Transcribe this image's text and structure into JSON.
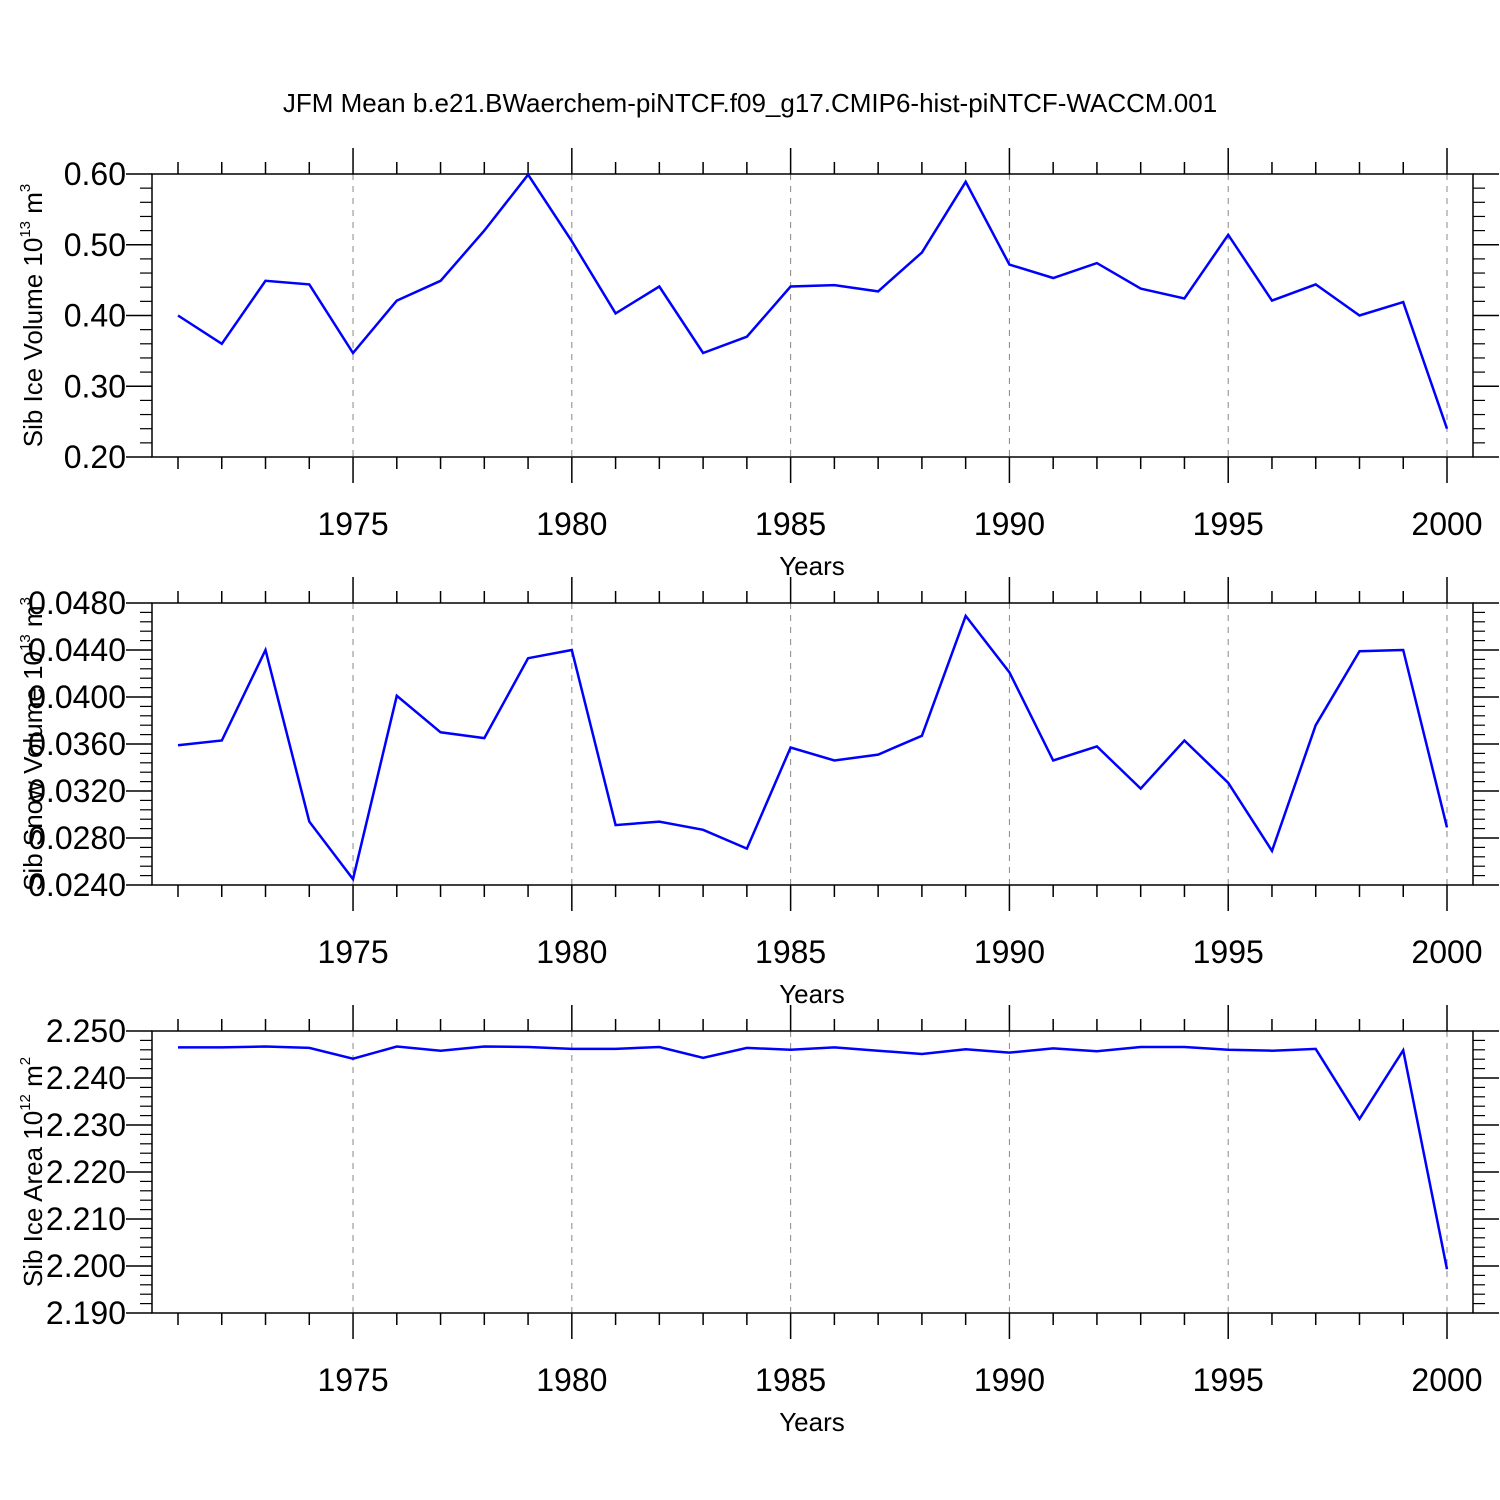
{
  "title": "JFM Mean b.e21.BWaerchem-piNTCF.f09_g17.CMIP6-hist-piNTCF-WACCM.001",
  "colors": {
    "series": "#0000ff",
    "axis": "#000000",
    "grid": "#888888"
  },
  "chart_data": [
    {
      "type": "line",
      "xlabel": "Years",
      "ylabel": {
        "text": "Sib Ice Volume 10",
        "exp": "13",
        "unit": " m",
        "unit_exp": "3"
      },
      "xlim": [
        1971,
        2000
      ],
      "ylim": [
        0.2,
        0.6
      ],
      "yticks": [
        "0.20",
        "0.30",
        "0.40",
        "0.50",
        "0.60"
      ],
      "xticks": [
        "1975",
        "1980",
        "1985",
        "1990",
        "1995",
        "2000"
      ],
      "grid": "vertical-dashed",
      "x": [
        1971,
        1972,
        1973,
        1974,
        1975,
        1976,
        1977,
        1978,
        1979,
        1980,
        1981,
        1982,
        1983,
        1984,
        1985,
        1986,
        1987,
        1988,
        1989,
        1990,
        1991,
        1992,
        1993,
        1994,
        1995,
        1996,
        1997,
        1998,
        1999,
        2000
      ],
      "values": [
        0.4,
        0.36,
        0.449,
        0.444,
        0.347,
        0.421,
        0.449,
        0.52,
        0.599,
        0.505,
        0.403,
        0.441,
        0.347,
        0.37,
        0.441,
        0.443,
        0.434,
        0.489,
        0.589,
        0.472,
        0.453,
        0.474,
        0.438,
        0.424,
        0.514,
        0.421,
        0.444,
        0.4,
        0.419,
        0.24
      ]
    },
    {
      "type": "line",
      "xlabel": "Years",
      "ylabel": {
        "text": "Sib Snow Volume 10",
        "exp": "13",
        "unit": " m",
        "unit_exp": "3"
      },
      "xlim": [
        1971,
        2000
      ],
      "ylim": [
        0.024,
        0.048
      ],
      "yticks": [
        "0.0240",
        "0.0280",
        "0.0320",
        "0.0360",
        "0.0400",
        "0.0440",
        "0.0480"
      ],
      "xticks": [
        "1975",
        "1980",
        "1985",
        "1990",
        "1995",
        "2000"
      ],
      "grid": "vertical-dashed",
      "x": [
        1971,
        1972,
        1973,
        1974,
        1975,
        1976,
        1977,
        1978,
        1979,
        1980,
        1981,
        1982,
        1983,
        1984,
        1985,
        1986,
        1987,
        1988,
        1989,
        1990,
        1991,
        1992,
        1993,
        1994,
        1995,
        1996,
        1997,
        1998,
        1999,
        2000
      ],
      "values": [
        0.0359,
        0.0363,
        0.044,
        0.0294,
        0.0245,
        0.0401,
        0.037,
        0.0365,
        0.0433,
        0.044,
        0.0291,
        0.0294,
        0.0287,
        0.0271,
        0.0357,
        0.0346,
        0.0351,
        0.0367,
        0.0469,
        0.0421,
        0.0346,
        0.0358,
        0.0322,
        0.0363,
        0.0327,
        0.0269,
        0.0376,
        0.0439,
        0.044,
        0.0289
      ]
    },
    {
      "type": "line",
      "xlabel": "Years",
      "ylabel": {
        "text": "Sib Ice Area 10",
        "exp": "12",
        "unit": " m",
        "unit_exp": "2"
      },
      "xlim": [
        1971,
        2000
      ],
      "ylim": [
        2.19,
        2.25
      ],
      "yticks": [
        "2.190",
        "2.200",
        "2.210",
        "2.220",
        "2.230",
        "2.240",
        "2.250"
      ],
      "xticks": [
        "1975",
        "1980",
        "1985",
        "1990",
        "1995",
        "2000"
      ],
      "grid": "vertical-dashed",
      "x": [
        1971,
        1972,
        1973,
        1974,
        1975,
        1976,
        1977,
        1978,
        1979,
        1980,
        1981,
        1982,
        1983,
        1984,
        1985,
        1986,
        1987,
        1988,
        1989,
        1990,
        1991,
        1992,
        1993,
        1994,
        1995,
        1996,
        1997,
        1998,
        1999,
        2000
      ],
      "values": [
        2.2465,
        2.2465,
        2.2467,
        2.2464,
        2.2441,
        2.2467,
        2.2458,
        2.2467,
        2.2466,
        2.2462,
        2.2462,
        2.2466,
        2.2443,
        2.2464,
        2.246,
        2.2465,
        2.2458,
        2.2451,
        2.2461,
        2.2454,
        2.2463,
        2.2457,
        2.2466,
        2.2466,
        2.246,
        2.2458,
        2.2462,
        2.2313,
        2.2459,
        2.1993
      ]
    }
  ]
}
